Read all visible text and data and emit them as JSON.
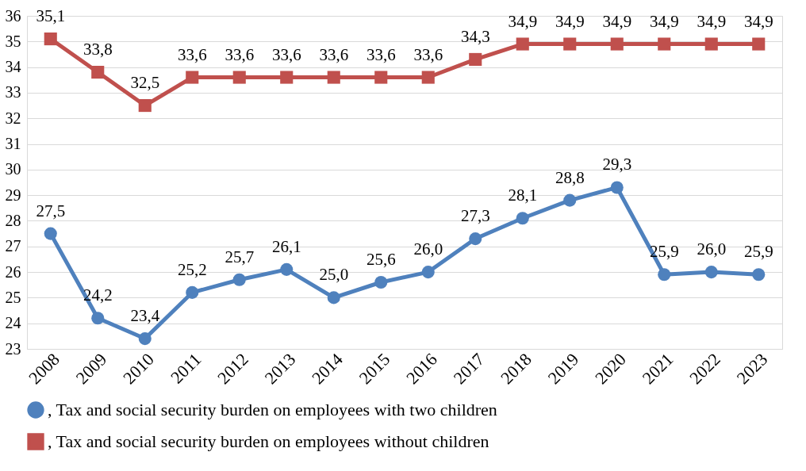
{
  "chart_data": {
    "type": "line",
    "categories": [
      "2008",
      "2009",
      "2010",
      "2011",
      "2012",
      "2013",
      "2014",
      "2015",
      "2016",
      "2017",
      "2018",
      "2019",
      "2020",
      "2021",
      "2022",
      "2023"
    ],
    "series": [
      {
        "name": ", Tax and social security burden on employees with two children",
        "color": "#4f81bd",
        "marker": "circle",
        "values": [
          27.5,
          24.2,
          23.4,
          25.2,
          25.7,
          26.1,
          25.0,
          25.6,
          26.0,
          27.3,
          28.1,
          28.8,
          29.3,
          25.9,
          26.0,
          25.9
        ],
        "value_labels": [
          "27,5",
          "24,2",
          "23,4",
          "25,2",
          "25,7",
          "26,1",
          "25,0",
          "25,6",
          "26,0",
          "27,3",
          "28,1",
          "28,8",
          "29,3",
          "25,9",
          "26,0",
          "25,9"
        ]
      },
      {
        "name": ", Tax and social security burden on employees without children",
        "color": "#c0504d",
        "marker": "square",
        "values": [
          35.1,
          33.8,
          32.5,
          33.6,
          33.6,
          33.6,
          33.6,
          33.6,
          33.6,
          34.3,
          34.9,
          34.9,
          34.9,
          34.9,
          34.9,
          34.9
        ],
        "value_labels": [
          "35,1",
          "33,8",
          "32,5",
          "33,6",
          "33,6",
          "33,6",
          "33,6",
          "33,6",
          "33,6",
          "34,3",
          "34,9",
          "34,9",
          "34,9",
          "34,9",
          "34,9",
          "34,9"
        ]
      }
    ],
    "ylim": [
      23,
      36
    ],
    "yticks": [
      23,
      24,
      25,
      26,
      27,
      28,
      29,
      30,
      31,
      32,
      33,
      34,
      35,
      36
    ],
    "grid": "y",
    "legend": "bottom",
    "line_style": "solid"
  }
}
